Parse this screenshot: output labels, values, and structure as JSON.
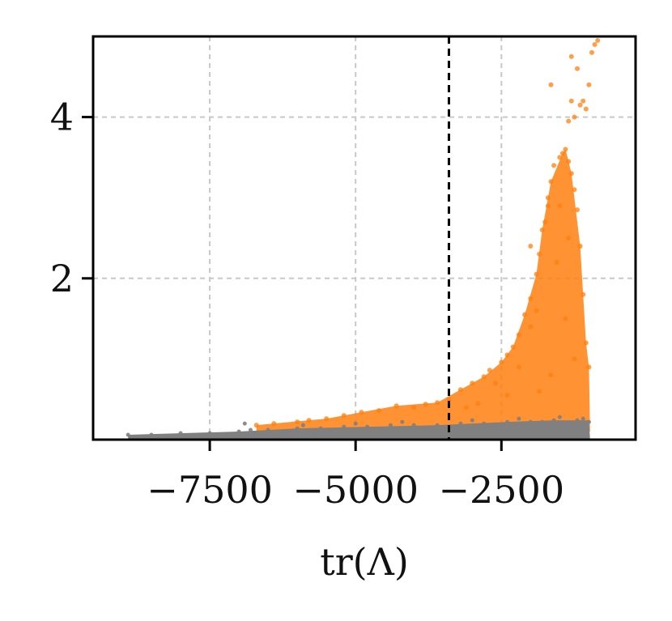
{
  "chart_data": {
    "type": "scatter",
    "title": "",
    "xlabel": "tr(Λ)",
    "ylabel": "",
    "xlim": [
      -9500,
      -200
    ],
    "ylim": [
      0,
      5
    ],
    "xticks": [
      -7500,
      -5000,
      -2500
    ],
    "xtick_labels": [
      "−7500",
      "−5000",
      "−2500"
    ],
    "yticks": [
      2,
      4
    ],
    "ytick_labels": [
      "2",
      "4"
    ],
    "grid": true,
    "threshold_x": -3400,
    "colors": {
      "orange": "#ff7f0e",
      "gray": "#808080",
      "threshold": "#000000",
      "grid": "#c8c8c8"
    },
    "series": [
      {
        "color": "#ff7f0e",
        "points": [
          [
            -6700,
            0.18
          ],
          [
            -6400,
            0.2
          ],
          [
            -6000,
            0.22
          ],
          [
            -5800,
            0.24
          ],
          [
            -5500,
            0.26
          ],
          [
            -5200,
            0.3
          ],
          [
            -4900,
            0.34
          ],
          [
            -4600,
            0.36
          ],
          [
            -4300,
            0.42
          ],
          [
            -4000,
            0.4
          ],
          [
            -3800,
            0.44
          ],
          [
            -3600,
            0.46
          ],
          [
            -3400,
            0.5
          ],
          [
            -3200,
            0.62
          ],
          [
            -3000,
            0.7
          ],
          [
            -2800,
            0.78
          ],
          [
            -2700,
            0.86
          ],
          [
            -2500,
            0.96
          ],
          [
            -2400,
            1.05
          ],
          [
            -2300,
            1.15
          ],
          [
            -2200,
            1.3
          ],
          [
            -2100,
            1.55
          ],
          [
            -2000,
            1.75
          ],
          [
            -1900,
            2.05
          ],
          [
            -1850,
            2.3
          ],
          [
            -1800,
            2.6
          ],
          [
            -1700,
            2.9
          ],
          [
            -1650,
            3.2
          ],
          [
            -1600,
            3.4
          ],
          [
            -1500,
            3.5
          ],
          [
            -1450,
            3.55
          ],
          [
            -1400,
            3.6
          ],
          [
            -1350,
            3.45
          ],
          [
            -1300,
            3.3
          ],
          [
            -1250,
            3.1
          ],
          [
            -1200,
            2.85
          ],
          [
            -1150,
            2.4
          ],
          [
            -1100,
            1.8
          ],
          [
            -1050,
            1.2
          ],
          [
            -1000,
            0.9
          ],
          [
            -1150,
            4.15
          ],
          [
            -1100,
            4.2
          ],
          [
            -1300,
            4.2
          ],
          [
            -1250,
            4.0
          ],
          [
            -1350,
            3.95
          ],
          [
            -1650,
            4.4
          ],
          [
            -1000,
            4.4
          ],
          [
            -1050,
            4.1
          ],
          [
            -1200,
            4.6
          ],
          [
            -950,
            4.8
          ],
          [
            -900,
            4.9
          ],
          [
            -850,
            4.95
          ],
          [
            -1300,
            4.75
          ],
          [
            -2000,
            1.4
          ],
          [
            -2200,
            0.9
          ],
          [
            -2600,
            0.7
          ],
          [
            -1900,
            1.6
          ],
          [
            -2000,
            2.4
          ],
          [
            -1750,
            2.7
          ],
          [
            -1550,
            2.2
          ],
          [
            -1400,
            1.5
          ],
          [
            -1250,
            1.0
          ],
          [
            -1650,
            0.8
          ],
          [
            -1850,
            0.6
          ],
          [
            -2400,
            0.55
          ],
          [
            -2900,
            0.45
          ],
          [
            -3100,
            0.4
          ],
          [
            -1500,
            2.9
          ],
          [
            -1350,
            2.5
          ],
          [
            -1700,
            3.0
          ]
        ]
      },
      {
        "color": "#808080",
        "points": [
          [
            -8900,
            0.06
          ],
          [
            -8500,
            0.06
          ],
          [
            -8000,
            0.08
          ],
          [
            -7500,
            0.08
          ],
          [
            -7000,
            0.1
          ],
          [
            -6800,
            0.12
          ],
          [
            -6500,
            0.12
          ],
          [
            -6000,
            0.14
          ],
          [
            -5600,
            0.14
          ],
          [
            -5200,
            0.16
          ],
          [
            -4800,
            0.16
          ],
          [
            -4400,
            0.18
          ],
          [
            -4000,
            0.18
          ],
          [
            -3600,
            0.18
          ],
          [
            -3200,
            0.2
          ],
          [
            -2800,
            0.2
          ],
          [
            -2400,
            0.22
          ],
          [
            -2000,
            0.22
          ],
          [
            -1600,
            0.24
          ],
          [
            -1200,
            0.24
          ],
          [
            -1000,
            0.22
          ],
          [
            -6900,
            0.2
          ],
          [
            -5900,
            0.18
          ],
          [
            -5000,
            0.2
          ],
          [
            -4200,
            0.22
          ],
          [
            -3000,
            0.24
          ],
          [
            -2200,
            0.26
          ],
          [
            -1500,
            0.28
          ],
          [
            -1100,
            0.26
          ],
          [
            -1800,
            0.22
          ]
        ]
      }
    ]
  }
}
